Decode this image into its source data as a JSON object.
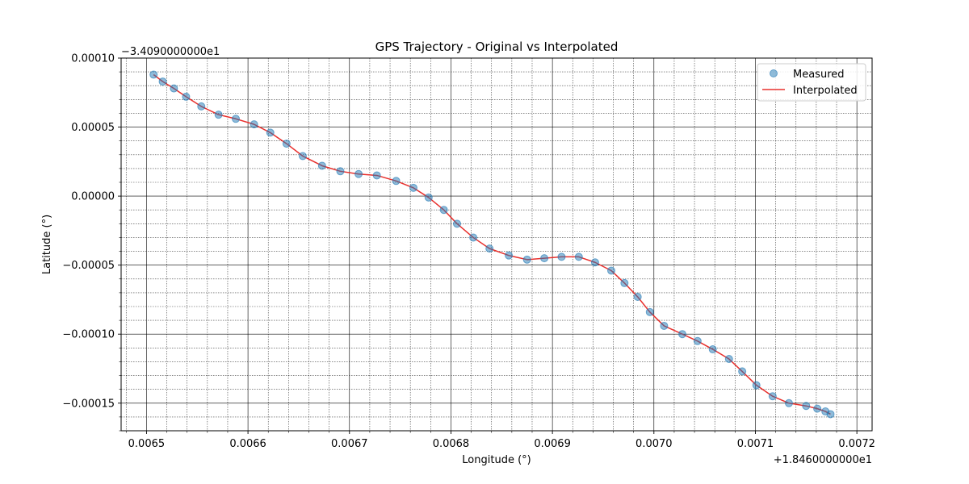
{
  "chart_data": {
    "type": "line",
    "title": "GPS Trajectory - Original vs Interpolated",
    "xlabel": "Longitude (°)",
    "ylabel": "Latitude (°)",
    "x_offset_label": "+1.8460000000e1",
    "y_offset_label": "−3.4090000000e1",
    "xlim": [
      0.006475,
      0.007215
    ],
    "ylim": [
      -0.00017,
      0.0001
    ],
    "x_ticks": [
      0.0065,
      0.0066,
      0.0067,
      0.0068,
      0.0069,
      0.007,
      0.0071,
      0.0072
    ],
    "x_tick_labels": [
      "0.0065",
      "0.0066",
      "0.0067",
      "0.0068",
      "0.0069",
      "0.0070",
      "0.0071",
      "0.0072"
    ],
    "y_ticks": [
      0.0001,
      5e-05,
      0.0,
      -5e-05,
      -0.0001,
      -0.00015
    ],
    "y_tick_labels": [
      "0.00010",
      "0.00005",
      "0.00000",
      "−0.00005",
      "−0.00010",
      "−0.00015"
    ],
    "grid": "major and minor",
    "legend_position": "top-right",
    "series": [
      {
        "name": "Measured",
        "style": "scatter",
        "color": "#1f77b4",
        "x": [
          0.006507,
          0.006516,
          0.006527,
          0.006539,
          0.006554,
          0.006571,
          0.006588,
          0.006606,
          0.006622,
          0.006638,
          0.006654,
          0.006673,
          0.006691,
          0.006709,
          0.006727,
          0.006746,
          0.006763,
          0.006778,
          0.006793,
          0.006806,
          0.006822,
          0.006838,
          0.006857,
          0.006875,
          0.006892,
          0.006909,
          0.006926,
          0.006942,
          0.006958,
          0.006971,
          0.006984,
          0.006996,
          0.00701,
          0.007028,
          0.007043,
          0.007058,
          0.007074,
          0.007087,
          0.007101,
          0.007117,
          0.007133,
          0.00715,
          0.007161,
          0.007169,
          0.007174
        ],
        "y": [
          8.8e-05,
          8.3e-05,
          7.8e-05,
          7.2e-05,
          6.5e-05,
          5.9e-05,
          5.6e-05,
          5.2e-05,
          4.6e-05,
          3.8e-05,
          2.9e-05,
          2.2e-05,
          1.8e-05,
          1.6e-05,
          1.5e-05,
          1.1e-05,
          6e-06,
          -1e-06,
          -1e-05,
          -2e-05,
          -3e-05,
          -3.8e-05,
          -4.3e-05,
          -4.6e-05,
          -4.5e-05,
          -4.4e-05,
          -4.4e-05,
          -4.8e-05,
          -5.4e-05,
          -6.3e-05,
          -7.3e-05,
          -8.4e-05,
          -9.4e-05,
          -0.0001,
          -0.000105,
          -0.000111,
          -0.000118,
          -0.000127,
          -0.000137,
          -0.000145,
          -0.00015,
          -0.000152,
          -0.000154,
          -0.000156,
          -0.000158
        ]
      },
      {
        "name": "Interpolated",
        "style": "line",
        "color": "#e8302d",
        "x": [
          0.006507,
          0.006516,
          0.006527,
          0.006539,
          0.006554,
          0.006571,
          0.006588,
          0.006606,
          0.006622,
          0.006638,
          0.006654,
          0.006673,
          0.006691,
          0.006709,
          0.006727,
          0.006746,
          0.006763,
          0.006778,
          0.006793,
          0.006806,
          0.006822,
          0.006838,
          0.006857,
          0.006875,
          0.006892,
          0.006909,
          0.006926,
          0.006942,
          0.006958,
          0.006971,
          0.006984,
          0.006996,
          0.00701,
          0.007028,
          0.007043,
          0.007058,
          0.007074,
          0.007087,
          0.007101,
          0.007117,
          0.007133,
          0.00715,
          0.007161,
          0.007169,
          0.007174
        ],
        "y": [
          8.8e-05,
          8.3e-05,
          7.8e-05,
          7.2e-05,
          6.5e-05,
          5.9e-05,
          5.6e-05,
          5.2e-05,
          4.6e-05,
          3.8e-05,
          2.9e-05,
          2.2e-05,
          1.8e-05,
          1.6e-05,
          1.5e-05,
          1.1e-05,
          6e-06,
          -1e-06,
          -1e-05,
          -2e-05,
          -3e-05,
          -3.8e-05,
          -4.3e-05,
          -4.6e-05,
          -4.5e-05,
          -4.4e-05,
          -4.4e-05,
          -4.8e-05,
          -5.4e-05,
          -6.3e-05,
          -7.3e-05,
          -8.4e-05,
          -9.4e-05,
          -0.0001,
          -0.000105,
          -0.000111,
          -0.000118,
          -0.000127,
          -0.000137,
          -0.000145,
          -0.00015,
          -0.000152,
          -0.000154,
          -0.000156,
          -0.000158
        ]
      }
    ]
  }
}
